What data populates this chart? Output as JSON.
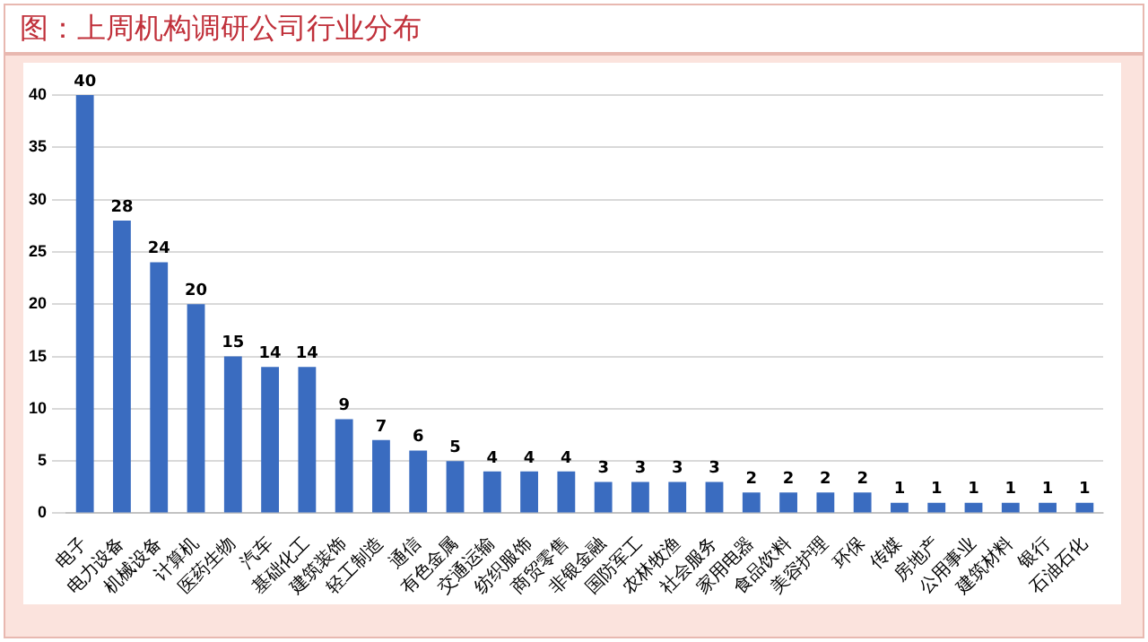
{
  "chart_data": {
    "type": "bar",
    "title": "图：上周机构调研公司行业分布",
    "categories": [
      "电子",
      "电力设备",
      "机械设备",
      "计算机",
      "医药生物",
      "汽车",
      "基础化工",
      "建筑装饰",
      "轻工制造",
      "通信",
      "有色金属",
      "交通运输",
      "纺织服饰",
      "商贸零售",
      "非银金融",
      "国防军工",
      "农林牧渔",
      "社会服务",
      "家用电器",
      "食品饮料",
      "美容护理",
      "环保",
      "传媒",
      "房地产",
      "公用事业",
      "建筑材料",
      "银行",
      "石油石化"
    ],
    "values": [
      40,
      28,
      24,
      20,
      15,
      14,
      14,
      9,
      7,
      6,
      5,
      4,
      4,
      4,
      3,
      3,
      3,
      3,
      2,
      2,
      2,
      2,
      1,
      1,
      1,
      1,
      1,
      1
    ],
    "color": "#3a6cc0",
    "ylim": [
      0,
      40
    ],
    "yticks": [
      0,
      5,
      10,
      15,
      20,
      25,
      30,
      35,
      40
    ],
    "grid": "y",
    "data_labels": true,
    "legend": false
  }
}
